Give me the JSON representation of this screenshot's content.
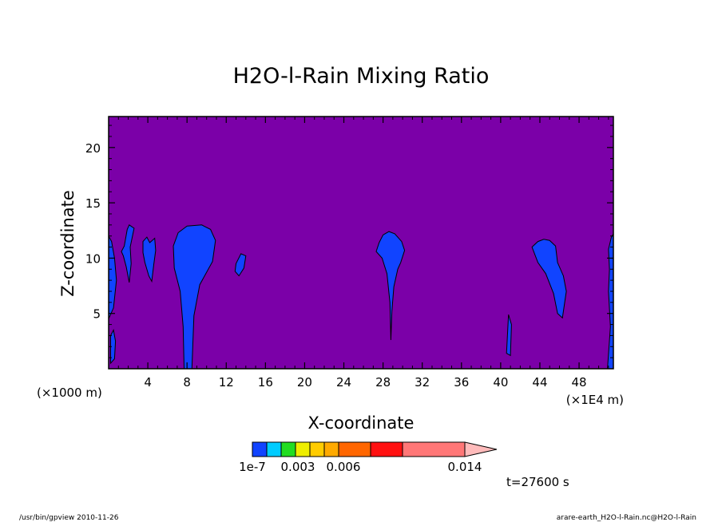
{
  "chart_data": {
    "type": "heatmap",
    "title": "H2O-l-Rain Mixing Ratio",
    "xlabel": "X-coordinate",
    "ylabel": "Z-coordinate",
    "x_unit_left": "(×1000 m)",
    "x_unit_right": "(×1E4 m)",
    "xlim": [
      0,
      51.5
    ],
    "ylim": [
      0,
      22.8
    ],
    "x_ticks": [
      4,
      8,
      12,
      16,
      20,
      24,
      28,
      32,
      36,
      40,
      44,
      48
    ],
    "y_ticks": [
      5,
      10,
      15,
      20
    ],
    "x_tick_labels": [
      "4",
      "8",
      "12",
      "16",
      "20",
      "24",
      "28",
      "32",
      "36",
      "40",
      "44",
      "48"
    ],
    "y_tick_labels": [
      "5",
      "10",
      "15",
      "20"
    ],
    "background_color": "#7b00a8",
    "rain_color": "#1144ff",
    "colorbar": {
      "colors": [
        "#1144ff",
        "#00ccff",
        "#22dd22",
        "#eeee00",
        "#ffcc00",
        "#ffaa00",
        "#ff6600",
        "#ff1111",
        "#ff7777",
        "#ffbbbb"
      ],
      "labels": [
        "1e-7",
        "0.003",
        "0.006",
        "0.014"
      ],
      "label_values": [
        0,
        0.003,
        0.006,
        0.014
      ]
    },
    "time_label": "t=27600 s",
    "footer_left": "/usr/bin/gpview  2010-11-26",
    "footer_right": "arare-earth_H2O-l-Rain.nc@H2O-l-Rain",
    "regions": [
      {
        "name": "rain-region-1",
        "pts": [
          [
            0,
            4.5
          ],
          [
            0.5,
            5.5
          ],
          [
            0.8,
            8
          ],
          [
            0.6,
            10
          ],
          [
            0.3,
            11.5
          ],
          [
            0,
            12
          ]
        ]
      },
      {
        "name": "rain-region-2",
        "pts": [
          [
            0.2,
            0.5
          ],
          [
            0.6,
            0.9
          ],
          [
            0.7,
            2.5
          ],
          [
            0.5,
            3.5
          ],
          [
            0.2,
            3
          ]
        ]
      },
      {
        "name": "rain-region-3",
        "pts": [
          [
            1.6,
            11.1
          ],
          [
            1.9,
            12.6
          ],
          [
            2.1,
            13
          ],
          [
            2.6,
            12.7
          ],
          [
            2.2,
            11
          ],
          [
            2.3,
            9.5
          ],
          [
            2.1,
            7.8
          ],
          [
            1.8,
            9.2
          ],
          [
            1.5,
            10.2
          ],
          [
            1.3,
            10.6
          ]
        ]
      },
      {
        "name": "rain-region-4",
        "pts": [
          [
            3.5,
            11.5
          ],
          [
            3.9,
            11.9
          ],
          [
            4.2,
            11.4
          ],
          [
            4.7,
            11.8
          ],
          [
            4.8,
            10.7
          ],
          [
            4.6,
            9.4
          ],
          [
            4.4,
            7.9
          ],
          [
            4.1,
            8.4
          ],
          [
            3.7,
            9.6
          ],
          [
            3.5,
            10.5
          ]
        ]
      },
      {
        "name": "rain-region-5",
        "pts": [
          [
            7.7,
            0
          ],
          [
            8.5,
            0
          ],
          [
            8.7,
            4.8
          ],
          [
            9.3,
            7.6
          ],
          [
            10.6,
            9.7
          ],
          [
            10.9,
            11.6
          ],
          [
            10.4,
            12.6
          ],
          [
            9.5,
            13.0
          ],
          [
            8.0,
            12.9
          ],
          [
            7.1,
            12.3
          ],
          [
            6.6,
            11.1
          ],
          [
            6.7,
            9.1
          ],
          [
            7.3,
            7.0
          ],
          [
            7.6,
            3.8
          ]
        ]
      },
      {
        "name": "rain-region-6",
        "pts": [
          [
            13.0,
            9.5
          ],
          [
            13.5,
            10.4
          ],
          [
            14.0,
            10.2
          ],
          [
            13.8,
            9.1
          ],
          [
            13.3,
            8.4
          ],
          [
            12.9,
            8.8
          ]
        ]
      },
      {
        "name": "rain-region-7",
        "pts": [
          [
            27.6,
            11.4
          ],
          [
            28.0,
            12.1
          ],
          [
            28.6,
            12.4
          ],
          [
            29.2,
            12.2
          ],
          [
            29.9,
            11.5
          ],
          [
            30.2,
            10.7
          ],
          [
            29.8,
            9.6
          ],
          [
            29.5,
            9.0
          ],
          [
            29.1,
            7.4
          ],
          [
            28.9,
            5.2
          ],
          [
            28.8,
            2.6
          ],
          [
            28.7,
            6.0
          ],
          [
            28.4,
            8.6
          ],
          [
            27.9,
            10.0
          ],
          [
            27.3,
            10.6
          ]
        ]
      },
      {
        "name": "rain-region-8",
        "pts": [
          [
            40.6,
            1.4
          ],
          [
            40.8,
            4.9
          ],
          [
            41.1,
            4.0
          ],
          [
            41.0,
            1.2
          ]
        ]
      },
      {
        "name": "rain-region-9",
        "pts": [
          [
            43.2,
            11.0
          ],
          [
            43.8,
            11.5
          ],
          [
            44.4,
            11.7
          ],
          [
            45.0,
            11.6
          ],
          [
            45.6,
            11.1
          ],
          [
            45.8,
            9.6
          ],
          [
            46.4,
            8.4
          ],
          [
            46.7,
            7.0
          ],
          [
            46.3,
            4.6
          ],
          [
            45.8,
            5.0
          ],
          [
            45.4,
            6.8
          ],
          [
            44.6,
            8.6
          ],
          [
            43.8,
            9.6
          ]
        ]
      },
      {
        "name": "rain-region-10",
        "pts": [
          [
            50.9,
            0
          ],
          [
            51.5,
            0
          ],
          [
            51.5,
            12.2
          ],
          [
            51.3,
            11.9
          ],
          [
            51.0,
            10.8
          ],
          [
            51.1,
            9.0
          ],
          [
            51.0,
            7.0
          ],
          [
            51.2,
            3.8
          ]
        ]
      }
    ]
  }
}
